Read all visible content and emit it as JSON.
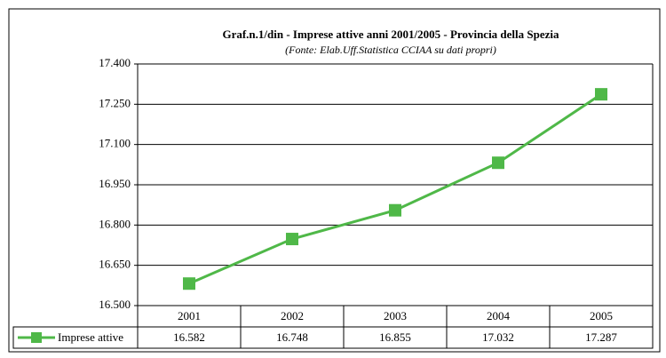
{
  "chart_data": {
    "type": "line",
    "title": "Graf.n.1/din - Imprese attive  anni 2001/2005 - Provincia della Spezia",
    "subtitle": "(Fonte: Elab.Uff.Statistica CCIAA su dati propri)",
    "categories": [
      "2001",
      "2002",
      "2003",
      "2004",
      "2005"
    ],
    "series": [
      {
        "name": "Imprese attive",
        "color": "#4fb848",
        "values": [
          16582,
          16748,
          16855,
          17032,
          17287
        ],
        "value_labels": [
          "16.582",
          "16.748",
          "16.855",
          "17.032",
          "17.287"
        ]
      }
    ],
    "ylim": [
      16500,
      17400
    ],
    "yticks": [
      {
        "value": 16500,
        "label": "16.500"
      },
      {
        "value": 16650,
        "label": "16.650"
      },
      {
        "value": 16800,
        "label": "16.800"
      },
      {
        "value": 16950,
        "label": "16.950"
      },
      {
        "value": 17100,
        "label": "17.100"
      },
      {
        "value": 17250,
        "label": "17.250"
      },
      {
        "value": 17400,
        "label": "17.400"
      }
    ],
    "grid": true
  }
}
